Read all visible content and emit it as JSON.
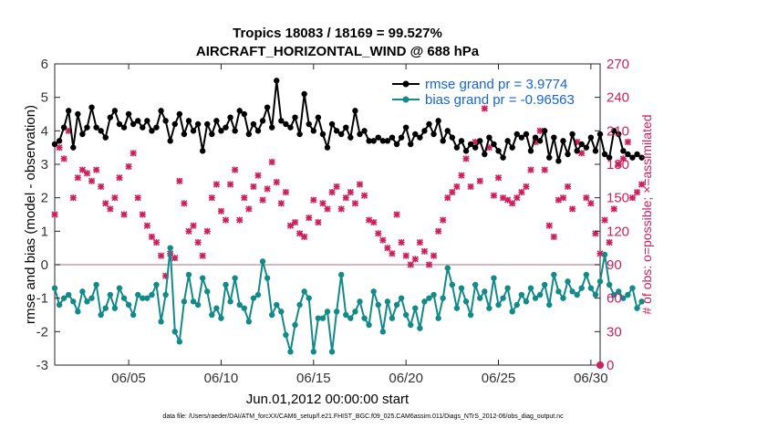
{
  "chart_data": {
    "type": "line",
    "title": "Tropics 18083 / 18169 = 99.527%",
    "subtitle": "AIRCRAFT_HORIZONTAL_WIND @ 688 hPa",
    "xlabel": "Jun.01,2012 00:00:00 start",
    "ylabel": "rmse and bias (model - observation)",
    "y2label": "# of obs: o=possible; ×=assimilated",
    "x_tick_labels": [
      "06/05",
      "06/10",
      "06/15",
      "06/20",
      "06/25",
      "06/30"
    ],
    "x_tick_days": [
      5,
      10,
      15,
      20,
      25,
      30
    ],
    "xlim": [
      1,
      30.5
    ],
    "ylim": [
      -3,
      6
    ],
    "y_ticks": [
      -3,
      -2,
      -1,
      0,
      1,
      2,
      3,
      4,
      5,
      6
    ],
    "y2lim": [
      0,
      270
    ],
    "y2_ticks": [
      0,
      30,
      60,
      90,
      120,
      150,
      180,
      210,
      240,
      270
    ],
    "legend_location": "top-right",
    "colors": {
      "rmse": "#000000",
      "bias": "#138a8a",
      "obs": "#cc1f5c",
      "zero_line": "#c9a0a6"
    },
    "series": [
      {
        "name": "rmse grand pr = 3.9774",
        "x_start": 1,
        "x_step": 0.25,
        "values": [
          3.6,
          3.7,
          4.1,
          4.6,
          3.5,
          4.5,
          3.9,
          4.1,
          4.7,
          4.1,
          4.0,
          3.8,
          4.4,
          4.6,
          4.2,
          4.1,
          4.5,
          4.2,
          4.3,
          4.1,
          4.3,
          4.0,
          4.1,
          4.6,
          4.3,
          3.7,
          4.2,
          4.5,
          3.9,
          4.3,
          4.0,
          4.2,
          3.4,
          4.2,
          3.9,
          4.3,
          4.0,
          4.1,
          4.4,
          4.0,
          4.6,
          4.5,
          3.9,
          4.2,
          4.0,
          4.3,
          4.7,
          4.1,
          5.5,
          4.3,
          4.2,
          4.1,
          4.4,
          3.9,
          5.1,
          4.2,
          4.0,
          4.4,
          3.9,
          3.5,
          4.2,
          4.0,
          3.9,
          4.1,
          3.8,
          4.6,
          3.9,
          4.0,
          3.7,
          3.7,
          3.8,
          3.7,
          3.7,
          3.8,
          3.6,
          3.8,
          4.1,
          3.6,
          3.9,
          3.8,
          4.0,
          4.2,
          3.9,
          4.3,
          3.7,
          4.0,
          3.8,
          3.5,
          3.7,
          3.4,
          3.6,
          3.5,
          3.7,
          3.3,
          3.8,
          3.6,
          3.4,
          3.2,
          3.7,
          3.5,
          3.9,
          3.8,
          3.9,
          3.4,
          3.8,
          3.7,
          4.0,
          3.2,
          3.8,
          3.1,
          3.7,
          3.3,
          3.9,
          3.4,
          3.6,
          3.5,
          3.8,
          3.4,
          3.9,
          3.3,
          3.2,
          4.0,
          3.9,
          3.4,
          3.3,
          3.2,
          3.3,
          3.2
        ]
      },
      {
        "name": "bias grand pr = -0.96563",
        "x_start": 1,
        "x_step": 0.25,
        "values": [
          -0.7,
          -1.2,
          -1.0,
          -0.9,
          -1.1,
          -1.4,
          -0.8,
          -1.1,
          -1.0,
          -0.6,
          -1.5,
          -1.3,
          -0.9,
          -1.3,
          -0.7,
          -1.0,
          -1.2,
          -1.5,
          -0.9,
          -1.0,
          -1.0,
          -0.9,
          -0.6,
          -1.7,
          -0.9,
          0.5,
          -2.0,
          -2.3,
          -1.1,
          -0.3,
          -1.1,
          -1.2,
          -0.4,
          -0.8,
          -1.5,
          -1.3,
          -1.6,
          -0.6,
          -1.1,
          -0.4,
          -1.2,
          -1.3,
          -1.7,
          -1.0,
          -0.9,
          0.1,
          -0.4,
          -1.5,
          -1.2,
          -1.4,
          -2.1,
          -2.6,
          -1.8,
          -1.2,
          -0.8,
          -1.0,
          -2.6,
          -1.6,
          -1.6,
          -1.4,
          -2.6,
          -1.4,
          -0.3,
          -1.5,
          -1.6,
          -1.4,
          -1.1,
          -1.6,
          -1.8,
          -0.8,
          -1.2,
          -2.0,
          -1.1,
          -1.6,
          -1.2,
          -1.0,
          -1.5,
          -1.8,
          -1.3,
          -1.9,
          -1.1,
          -1.0,
          -0.9,
          -1.6,
          -1.0,
          -0.1,
          -0.6,
          -1.3,
          -0.7,
          -1.1,
          -1.5,
          -0.6,
          -1.0,
          -0.8,
          -1.3,
          -0.4,
          -1.2,
          -1.0,
          -0.7,
          -1.4,
          -1.2,
          -0.9,
          -1.1,
          -0.7,
          -1.0,
          -0.9,
          -0.6,
          -1.2,
          -0.3,
          -0.8,
          -1.0,
          -0.5,
          -0.8,
          -0.9,
          -0.7,
          -0.3,
          -0.7,
          -0.9,
          -0.5,
          0.3,
          -0.6,
          -0.9,
          -0.8,
          -1.0,
          -0.9,
          -0.7,
          -1.3,
          -1.1
        ]
      }
    ],
    "obs_count_series": {
      "name": "# of obs (right axis)",
      "x_start": 1,
      "x_step": 0.25,
      "values": [
        135,
        195,
        185,
        210,
        150,
        168,
        175,
        172,
        165,
        175,
        160,
        145,
        140,
        150,
        168,
        135,
        178,
        190,
        150,
        135,
        125,
        115,
        110,
        98,
        80,
        100,
        96,
        165,
        145,
        120,
        125,
        110,
        98,
        120,
        150,
        162,
        138,
        130,
        162,
        175,
        130,
        150,
        140,
        160,
        170,
        148,
        158,
        182,
        164,
        145,
        155,
        125,
        128,
        118,
        115,
        132,
        148,
        128,
        145,
        140,
        155,
        160,
        140,
        150,
        155,
        145,
        162,
        152,
        130,
        128,
        118,
        112,
        105,
        100,
        135,
        110,
        98,
        90,
        95,
        110,
        102,
        90,
        98,
        120,
        130,
        150,
        155,
        160,
        170,
        185,
        160,
        200,
        165,
        230,
        195,
        152,
        168,
        150,
        148,
        145,
        150,
        155,
        160,
        175,
        200,
        210,
        175,
        125,
        115,
        148,
        150,
        160,
        140,
        200,
        190,
        150,
        145,
        118,
        100,
        130,
        110,
        140,
        180,
        185,
        200,
        150,
        155,
        162
      ]
    }
  },
  "footer": "data file: /Users/raeder/DAI/ATM_forcXX/CAM6_setup/f.e21.FHIST_BGC.f09_025.CAM6assim.011/Diags_NTrS_2012-06/obs_diag_output.nc"
}
